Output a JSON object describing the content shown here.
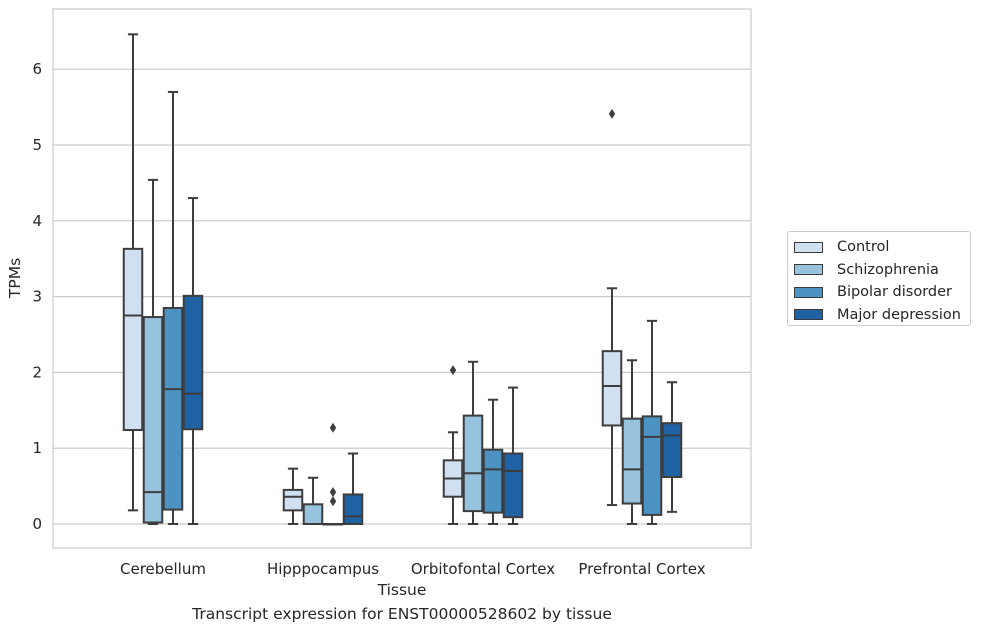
{
  "chart_data": {
    "type": "box",
    "title": "Transcript expression for ENST00000528602 by tissue",
    "xlabel": "Tissue",
    "ylabel": "TPMs",
    "ylim": [
      -0.32,
      6.77
    ],
    "yticks": [
      "0",
      "1",
      "2",
      "3",
      "4",
      "5",
      "6"
    ],
    "grid": "horizontal",
    "legend_position": "right",
    "categories": [
      "Cerebellum",
      "Hipppocampus",
      "Orbitofontal Cortex",
      "Prefrontal Cortex"
    ],
    "series": [
      {
        "name": "Control",
        "color": "#d0e0f1",
        "boxes": [
          {
            "whislo": 0.18,
            "q1": 1.24,
            "med": 2.75,
            "q3": 3.63,
            "whishi": 6.46,
            "fliers": []
          },
          {
            "whislo": 0.0,
            "q1": 0.18,
            "med": 0.36,
            "q3": 0.45,
            "whishi": 0.73,
            "fliers": []
          },
          {
            "whislo": 0.0,
            "q1": 0.36,
            "med": 0.6,
            "q3": 0.84,
            "whishi": 1.21,
            "fliers": [
              2.03
            ]
          },
          {
            "whislo": 0.25,
            "q1": 1.3,
            "med": 1.82,
            "q3": 2.28,
            "whishi": 3.11,
            "fliers": [
              5.41
            ]
          }
        ]
      },
      {
        "name": "Schizophrenia",
        "color": "#97c3de",
        "boxes": [
          {
            "whislo": 0.0,
            "q1": 0.02,
            "med": 0.42,
            "q3": 2.73,
            "whishi": 4.54,
            "fliers": []
          },
          {
            "whislo": 0.0,
            "q1": 0.0,
            "med": 0.0,
            "q3": 0.26,
            "whishi": 0.61,
            "fliers": []
          },
          {
            "whislo": 0.0,
            "q1": 0.17,
            "med": 0.67,
            "q3": 1.43,
            "whishi": 2.14,
            "fliers": []
          },
          {
            "whislo": 0.0,
            "q1": 0.27,
            "med": 0.72,
            "q3": 1.39,
            "whishi": 2.16,
            "fliers": []
          }
        ]
      },
      {
        "name": "Bipolar disorder",
        "color": "#4c92c3",
        "boxes": [
          {
            "whislo": 0.0,
            "q1": 0.19,
            "med": 1.78,
            "q3": 2.85,
            "whishi": 5.7,
            "fliers": []
          },
          {
            "whislo": 0.0,
            "q1": 0.0,
            "med": 0.0,
            "q3": 0.0,
            "whishi": 0.0,
            "fliers": [
              0.3,
              0.42,
              1.27
            ]
          },
          {
            "whislo": 0.0,
            "q1": 0.15,
            "med": 0.72,
            "q3": 0.98,
            "whishi": 1.64,
            "fliers": []
          },
          {
            "whislo": 0.0,
            "q1": 0.12,
            "med": 1.15,
            "q3": 1.42,
            "whishi": 2.68,
            "fliers": []
          }
        ]
      },
      {
        "name": "Major depression",
        "color": "#1f63a5",
        "boxes": [
          {
            "whislo": 0.0,
            "q1": 1.25,
            "med": 1.72,
            "q3": 3.01,
            "whishi": 4.3,
            "fliers": []
          },
          {
            "whislo": 0.0,
            "q1": 0.0,
            "med": 0.1,
            "q3": 0.39,
            "whishi": 0.93,
            "fliers": []
          },
          {
            "whislo": 0.0,
            "q1": 0.09,
            "med": 0.7,
            "q3": 0.93,
            "whishi": 1.8,
            "fliers": []
          },
          {
            "whislo": 0.16,
            "q1": 0.62,
            "med": 1.17,
            "q3": 1.33,
            "whishi": 1.87,
            "fliers": []
          }
        ]
      }
    ]
  }
}
